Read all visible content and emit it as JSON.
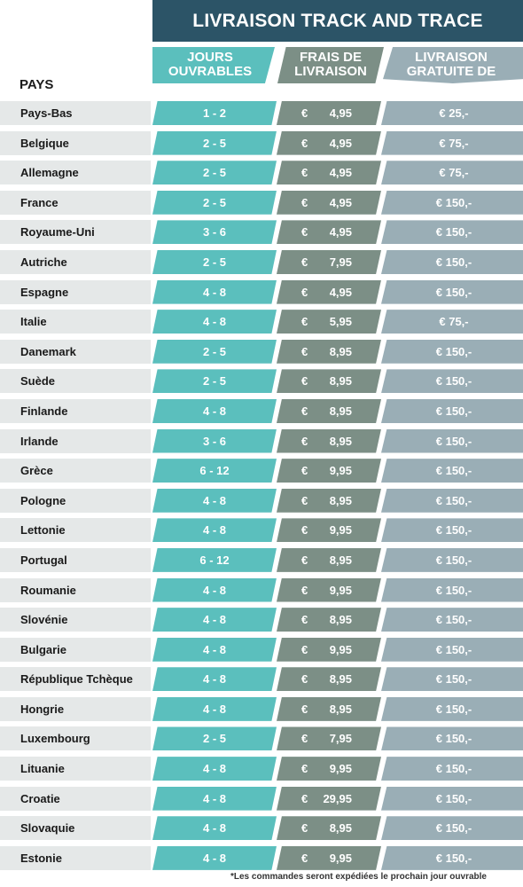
{
  "title": "LIVRAISON TRACK AND TRACE",
  "headers": {
    "country": "PAYS",
    "days": "JOURS OUVRABLES",
    "fee": "FRAIS DE LIVRAISON",
    "free": "LIVRAISON GRATUITE DE"
  },
  "colors": {
    "title_bg": "#2c5467",
    "days": "#5bbfbd",
    "fee": "#7c8f86",
    "free": "#9aaeb6",
    "country_bg": "#e5e8e8"
  },
  "rows": [
    {
      "country": "Pays-Bas",
      "days": "1 - 2",
      "fee": "4,95",
      "free": "€ 25,-"
    },
    {
      "country": "Belgique",
      "days": "2 - 5",
      "fee": "4,95",
      "free": "€ 75,-"
    },
    {
      "country": "Allemagne",
      "days": "2 - 5",
      "fee": "4,95",
      "free": "€ 75,-"
    },
    {
      "country": "France",
      "days": "2 - 5",
      "fee": "4,95",
      "free": "€ 150,-"
    },
    {
      "country": "Royaume-Uni",
      "days": "3 - 6",
      "fee": "4,95",
      "free": "€ 150,-"
    },
    {
      "country": "Autriche",
      "days": "2 - 5",
      "fee": "7,95",
      "free": "€ 150,-"
    },
    {
      "country": "Espagne",
      "days": "4 - 8",
      "fee": "4,95",
      "free": "€ 150,-"
    },
    {
      "country": "Italie",
      "days": "4 - 8",
      "fee": "5,95",
      "free": "€ 75,-"
    },
    {
      "country": "Danemark",
      "days": "2 - 5",
      "fee": "8,95",
      "free": "€ 150,-"
    },
    {
      "country": "Suède",
      "days": "2 - 5",
      "fee": "8,95",
      "free": "€ 150,-"
    },
    {
      "country": "Finlande",
      "days": "4 - 8",
      "fee": "8,95",
      "free": "€ 150,-"
    },
    {
      "country": "Irlande",
      "days": "3 - 6",
      "fee": "8,95",
      "free": "€ 150,-"
    },
    {
      "country": "Grèce",
      "days": "6 - 12",
      "fee": "9,95",
      "free": "€ 150,-"
    },
    {
      "country": "Pologne",
      "days": "4 - 8",
      "fee": "8,95",
      "free": "€ 150,-"
    },
    {
      "country": "Lettonie",
      "days": "4 - 8",
      "fee": "9,95",
      "free": "€ 150,-"
    },
    {
      "country": "Portugal",
      "days": "6 - 12",
      "fee": "8,95",
      "free": "€ 150,-"
    },
    {
      "country": "Roumanie",
      "days": "4 - 8",
      "fee": "9,95",
      "free": "€ 150,-"
    },
    {
      "country": "Slovénie",
      "days": "4 - 8",
      "fee": "8,95",
      "free": "€ 150,-"
    },
    {
      "country": "Bulgarie",
      "days": "4 - 8",
      "fee": "9,95",
      "free": "€ 150,-"
    },
    {
      "country": "République Tchèque",
      "days": "4 - 8",
      "fee": "8,95",
      "free": "€ 150,-"
    },
    {
      "country": "Hongrie",
      "days": "4 - 8",
      "fee": "8,95",
      "free": "€ 150,-"
    },
    {
      "country": "Luxembourg",
      "days": "2 - 5",
      "fee": "7,95",
      "free": "€ 150,-"
    },
    {
      "country": "Lituanie",
      "days": "4 - 8",
      "fee": "9,95",
      "free": "€ 150,-"
    },
    {
      "country": "Croatie",
      "days": "4 - 8",
      "fee": "29,95",
      "free": "€ 150,-"
    },
    {
      "country": "Slovaquie",
      "days": "4 - 8",
      "fee": "8,95",
      "free": "€ 150,-"
    },
    {
      "country": "Estonie",
      "days": "4 - 8",
      "fee": "9,95",
      "free": "€ 150,-"
    }
  ],
  "currency_symbol": "€",
  "footnote": "*Les commandes seront expédiées le prochain jour ouvrable"
}
